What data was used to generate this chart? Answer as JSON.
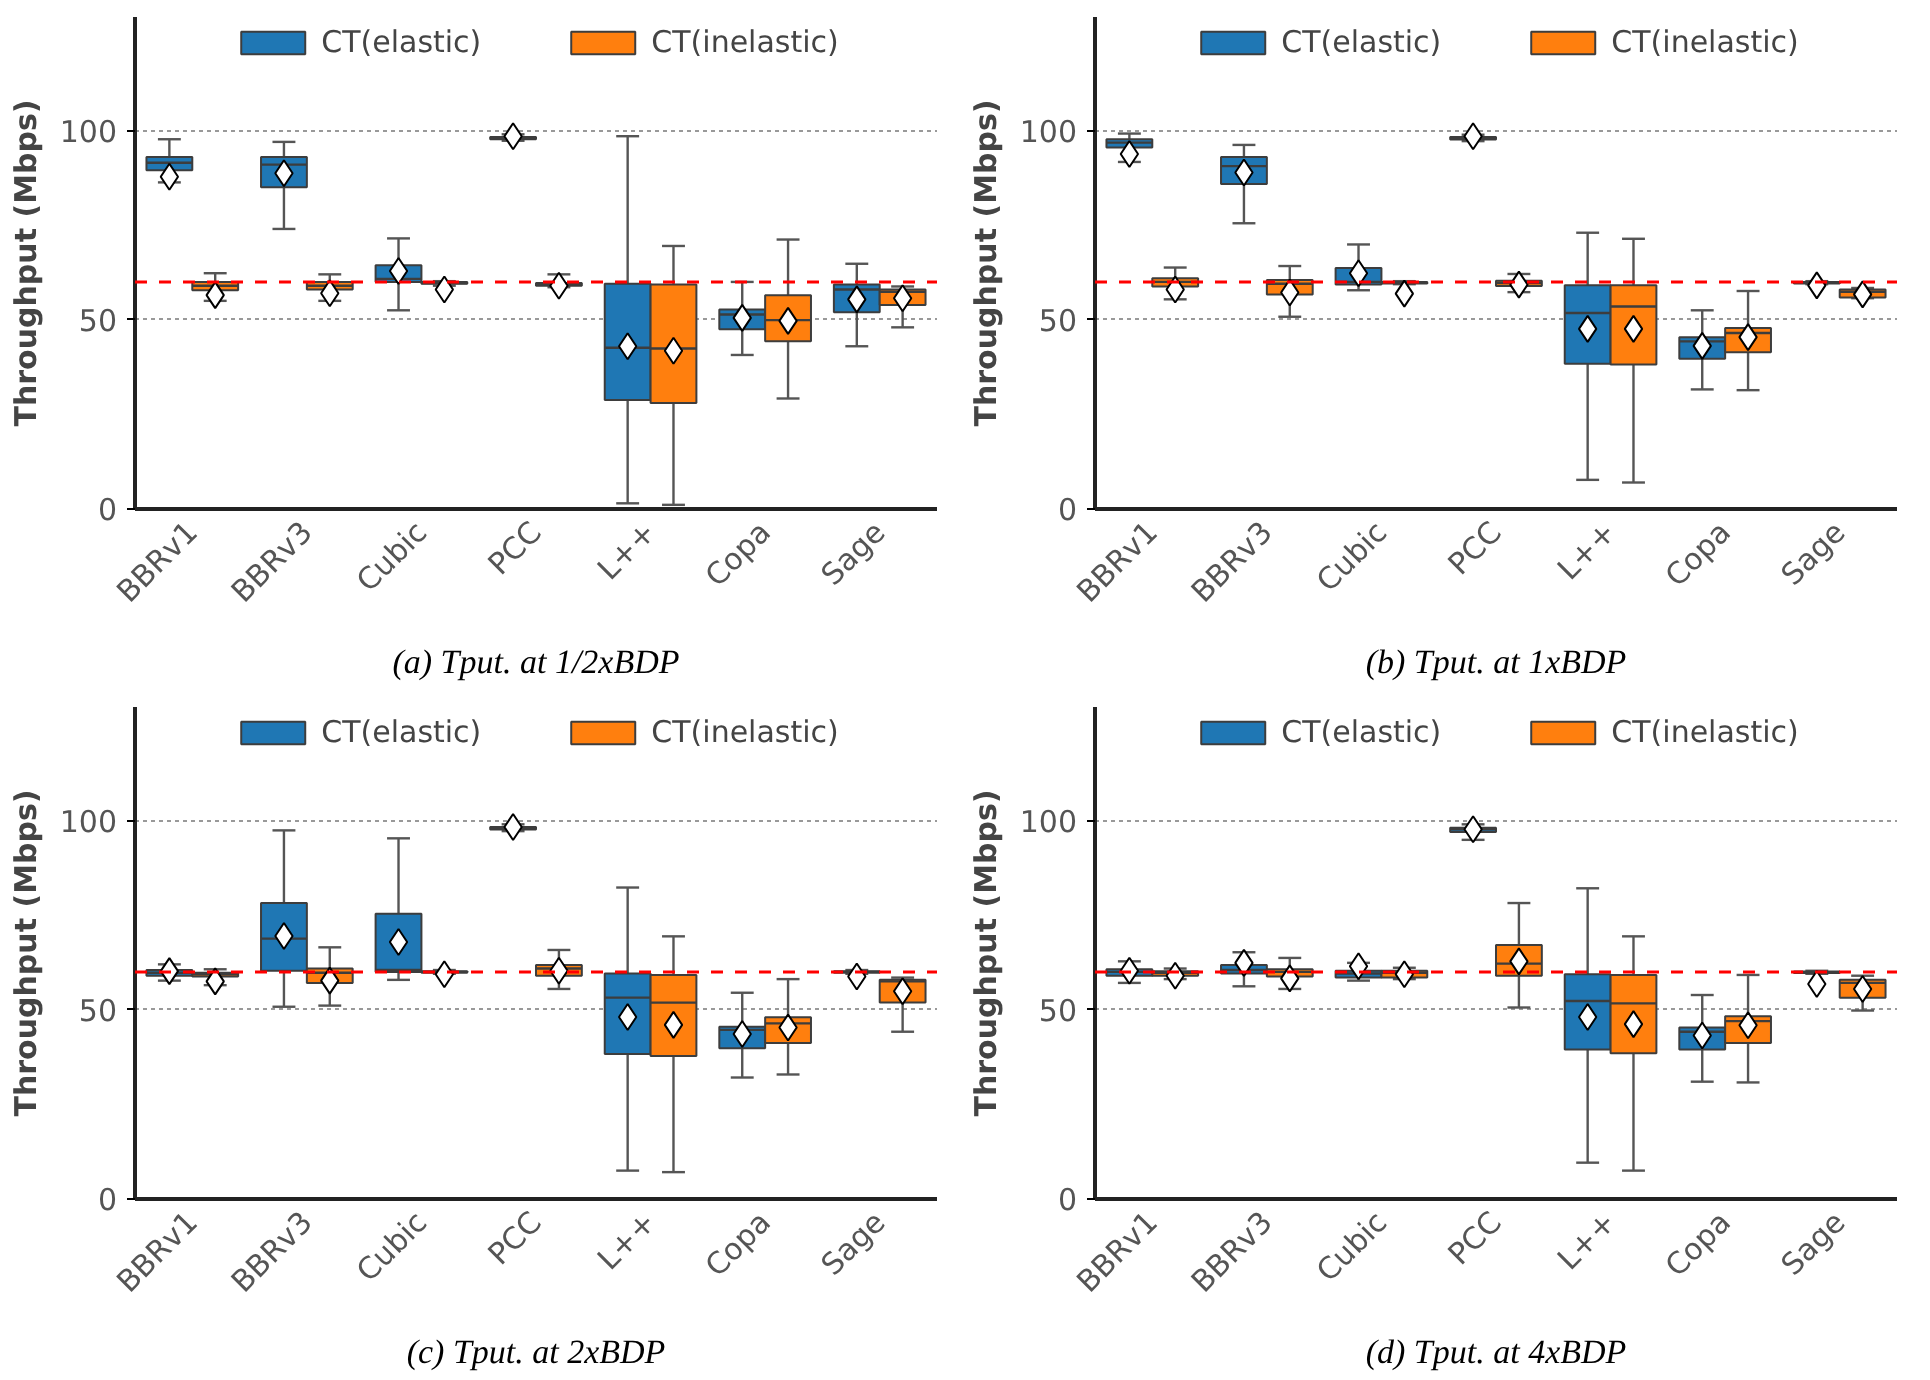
{
  "chart_data": [
    {
      "type": "box",
      "title": "(a) Tput. at 1/2xBDP",
      "ylabel": "Throughput (Mbps)",
      "categories": [
        "BBRv1",
        "BBRv3",
        "Cubic",
        "PCC",
        "L++",
        "Copa",
        "Sage"
      ],
      "ylim": [
        0,
        130
      ],
      "yticks": [
        0,
        50,
        100
      ],
      "grid": "y",
      "legend": "top",
      "marker": "diamond",
      "ref_lines": [
        {
          "axis": "y",
          "value": 60,
          "color": "#ff0000",
          "line_style": "dashed"
        }
      ],
      "series": [
        {
          "name": "CT(elastic)",
          "color": "#1f77b4",
          "boxes": [
            {
              "low": 86.3,
              "q1": 89.5,
              "median": 91.5,
              "q3": 93,
              "high": 97.7,
              "mean": 87.8
            },
            {
              "low": 74,
              "q1": 85,
              "median": 91,
              "q3": 93,
              "high": 97,
              "mean": 88.7
            },
            {
              "low": 52.5,
              "q1": 60,
              "median": 60.8,
              "q3": 64.4,
              "high": 71.5,
              "mean": 62.9
            },
            {
              "low": 97.3,
              "q1": 97.7,
              "median": 98,
              "q3": 98.3,
              "high": 99,
              "mean": 98.5
            },
            {
              "low": 1.5,
              "q1": 28.8,
              "median": 42.6,
              "q3": 59.5,
              "high": 98.5,
              "mean": 43
            },
            {
              "low": 40.7,
              "q1": 47.5,
              "median": 51.4,
              "q3": 52.7,
              "high": 60,
              "mean": 50.5
            },
            {
              "low": 43,
              "q1": 52,
              "median": 58,
              "q3": 59.3,
              "high": 64.8,
              "mean": 55.4
            }
          ]
        },
        {
          "name": "CT(inelastic)",
          "color": "#ff7f0e",
          "boxes": [
            {
              "low": 55,
              "q1": 57.8,
              "median": 59,
              "q3": 60,
              "high": 62.3,
              "mean": 56.5
            },
            {
              "low": 55,
              "q1": 58,
              "median": 59,
              "q3": 60,
              "high": 62,
              "mean": 57
            },
            {
              "low": 59,
              "q1": 59.5,
              "median": 59.7,
              "q3": 60,
              "high": 60.2,
              "mean": 58
            },
            {
              "low": 58.6,
              "q1": 59,
              "median": 59.3,
              "q3": 59.7,
              "high": 62,
              "mean": 59
            },
            {
              "low": 1.1,
              "q1": 28,
              "median": 42.4,
              "q3": 59.3,
              "high": 69.5,
              "mean": 41.8
            },
            {
              "low": 29.2,
              "q1": 44.3,
              "median": 49.9,
              "q3": 56.5,
              "high": 71.2,
              "mean": 49.7
            },
            {
              "low": 48,
              "q1": 53.9,
              "median": 57.4,
              "q3": 58,
              "high": 58.8,
              "mean": 55.7
            }
          ]
        }
      ]
    },
    {
      "type": "box",
      "title": "(b) Tput. at 1xBDP",
      "ylabel": "Throughput (Mbps)",
      "categories": [
        "BBRv1",
        "BBRv3",
        "Cubic",
        "PCC",
        "L++",
        "Copa",
        "Sage"
      ],
      "ylim": [
        0,
        130
      ],
      "yticks": [
        0,
        50,
        100
      ],
      "grid": "y",
      "legend": "top",
      "marker": "diamond",
      "ref_lines": [
        {
          "axis": "y",
          "value": 60,
          "color": "#ff0000",
          "line_style": "dashed"
        }
      ],
      "series": [
        {
          "name": "CT(elastic)",
          "color": "#1f77b4",
          "boxes": [
            {
              "low": 91.7,
              "q1": 95.5,
              "median": 96.8,
              "q3": 97.7,
              "high": 99.2,
              "mean": 93.8
            },
            {
              "low": 75.5,
              "q1": 85.9,
              "median": 90.6,
              "q3": 93,
              "high": 96.2,
              "mean": 88.9
            },
            {
              "low": 57.8,
              "q1": 59.3,
              "median": 60,
              "q3": 63.7,
              "high": 69.9,
              "mean": 62.3
            },
            {
              "low": 97.2,
              "q1": 97.6,
              "median": 97.9,
              "q3": 98.3,
              "high": 98.9,
              "mean": 98.5
            },
            {
              "low": 7.7,
              "q1": 38.4,
              "median": 51.8,
              "q3": 59.1,
              "high": 73,
              "mean": 47.6
            },
            {
              "low": 31.6,
              "q1": 39.7,
              "median": 44.3,
              "q3": 45.4,
              "high": 52.5,
              "mean": 43.1
            },
            {
              "low": 59.4,
              "q1": 59.6,
              "median": 59.8,
              "q3": 60,
              "high": 60.2,
              "mean": 59.1
            }
          ]
        },
        {
          "name": "CT(inelastic)",
          "color": "#ff7f0e",
          "boxes": [
            {
              "low": 55.4,
              "q1": 58.8,
              "median": 60,
              "q3": 61,
              "high": 63.8,
              "mean": 58
            },
            {
              "low": 50.8,
              "q1": 56.7,
              "median": 59.5,
              "q3": 60.5,
              "high": 64.2,
              "mean": 57.2
            },
            {
              "low": 59.4,
              "q1": 59.6,
              "median": 59.8,
              "q3": 60,
              "high": 60.2,
              "mean": 56.9
            },
            {
              "low": 57.3,
              "q1": 58.9,
              "median": 59.7,
              "q3": 60.3,
              "high": 62.1,
              "mean": 59.3
            },
            {
              "low": 7,
              "q1": 38.2,
              "median": 53.5,
              "q3": 59.1,
              "high": 71.4,
              "mean": 47.6
            },
            {
              "low": 31.4,
              "q1": 41.4,
              "median": 46.5,
              "q3": 47.8,
              "high": 57.6,
              "mean": 45.4
            },
            {
              "low": 55.7,
              "q1": 55.9,
              "median": 57.4,
              "q3": 58,
              "high": 58.4,
              "mean": 56.7
            }
          ]
        }
      ]
    },
    {
      "type": "box",
      "title": "(c) Tput. at 2xBDP",
      "ylabel": "Throughput (Mbps)",
      "categories": [
        "BBRv1",
        "BBRv3",
        "Cubic",
        "PCC",
        "L++",
        "Copa",
        "Sage"
      ],
      "ylim": [
        0,
        130
      ],
      "yticks": [
        0,
        50,
        100
      ],
      "grid": "y",
      "legend": "top",
      "marker": "diamond",
      "ref_lines": [
        {
          "axis": "y",
          "value": 60,
          "color": "#ff0000",
          "line_style": "dashed"
        }
      ],
      "series": [
        {
          "name": "CT(elastic)",
          "color": "#1f77b4",
          "boxes": [
            {
              "low": 57.7,
              "q1": 59,
              "median": 59.8,
              "q3": 60.5,
              "high": 62,
              "mean": 60.2
            },
            {
              "low": 50.8,
              "q1": 60.3,
              "median": 68.8,
              "q3": 78.2,
              "high": 97.4,
              "mean": 69.5
            },
            {
              "low": 57.9,
              "q1": 60,
              "median": 60.5,
              "q3": 75.4,
              "high": 95.3,
              "mean": 67.9
            },
            {
              "low": 97.2,
              "q1": 97.6,
              "median": 98,
              "q3": 98.3,
              "high": 99,
              "mean": 98.3
            },
            {
              "low": 7.5,
              "q1": 38.3,
              "median": 53.2,
              "q3": 59.6,
              "high": 82.3,
              "mean": 48.1
            },
            {
              "low": 32.1,
              "q1": 39.8,
              "median": 44.7,
              "q3": 45.5,
              "high": 54.5,
              "mean": 43.6
            },
            {
              "low": 59.5,
              "q1": 59.8,
              "median": 60,
              "q3": 60.2,
              "high": 60.5,
              "mean": 58.8
            }
          ]
        },
        {
          "name": "CT(inelastic)",
          "color": "#ff7f0e",
          "boxes": [
            {
              "low": 56.5,
              "q1": 58.8,
              "median": 59.4,
              "q3": 59.8,
              "high": 60.7,
              "mean": 57.5
            },
            {
              "low": 51.1,
              "q1": 57.1,
              "median": 59.8,
              "q3": 60.9,
              "high": 66.5,
              "mean": 57.7
            },
            {
              "low": 59.5,
              "q1": 59.8,
              "median": 60,
              "q3": 60.2,
              "high": 60.5,
              "mean": 59.4
            },
            {
              "low": 55.5,
              "q1": 59,
              "median": 60.9,
              "q3": 61.8,
              "high": 65.8,
              "mean": 60.3
            },
            {
              "low": 7.1,
              "q1": 37.8,
              "median": 51.9,
              "q3": 59.2,
              "high": 69.4,
              "mean": 46
            },
            {
              "low": 32.9,
              "q1": 41.2,
              "median": 46.4,
              "q3": 48,
              "high": 58.1,
              "mean": 45.3
            },
            {
              "low": 44.2,
              "q1": 51.9,
              "median": 57.5,
              "q3": 57.9,
              "high": 58.5,
              "mean": 54.9
            }
          ]
        }
      ]
    },
    {
      "type": "box",
      "title": "(d) Tput. at 4xBDP",
      "ylabel": "Throughput (Mbps)",
      "categories": [
        "BBRv1",
        "BBRv3",
        "Cubic",
        "PCC",
        "L++",
        "Copa",
        "Sage"
      ],
      "ylim": [
        0,
        130
      ],
      "yticks": [
        0,
        50,
        100
      ],
      "grid": "y",
      "legend": "top",
      "marker": "diamond",
      "ref_lines": [
        {
          "axis": "y",
          "value": 60,
          "color": "#ff0000",
          "line_style": "dashed"
        }
      ],
      "series": [
        {
          "name": "CT(elastic)",
          "color": "#1f77b4",
          "boxes": [
            {
              "low": 57.1,
              "q1": 59,
              "median": 60,
              "q3": 60.7,
              "high": 62.8,
              "mean": 60.3
            },
            {
              "low": 56.2,
              "q1": 59.6,
              "median": 60.5,
              "q3": 61.8,
              "high": 65.2,
              "mean": 62.4
            },
            {
              "low": 57.7,
              "q1": 58.5,
              "median": 59.6,
              "q3": 60.3,
              "high": 62.4,
              "mean": 61.5
            },
            {
              "low": 94.9,
              "q1": 97,
              "median": 97.7,
              "q3": 98.1,
              "high": 99,
              "mean": 97.7
            },
            {
              "low": 9.6,
              "q1": 39.5,
              "median": 52.3,
              "q3": 59.4,
              "high": 82.1,
              "mean": 48.1
            },
            {
              "low": 31,
              "q1": 39.5,
              "median": 44.2,
              "q3": 45.3,
              "high": 53.9,
              "mean": 43.2
            },
            {
              "low": 59.5,
              "q1": 59.7,
              "median": 59.9,
              "q3": 60.1,
              "high": 60.3,
              "mean": 56.8
            }
          ]
        },
        {
          "name": "CT(inelastic)",
          "color": "#ff7f0e",
          "boxes": [
            {
              "low": 58.1,
              "q1": 59,
              "median": 59.8,
              "q3": 60.2,
              "high": 60.9,
              "mean": 59
            },
            {
              "low": 55.5,
              "q1": 58.8,
              "median": 60,
              "q3": 60.7,
              "high": 63.7,
              "mean": 58.3
            },
            {
              "low": 58.1,
              "q1": 58.5,
              "median": 59.8,
              "q3": 60.3,
              "high": 61.1,
              "mean": 59.4
            },
            {
              "low": 50.6,
              "q1": 59,
              "median": 62.2,
              "q3": 67.1,
              "high": 78.2,
              "mean": 62.8
            },
            {
              "low": 7.5,
              "q1": 38.5,
              "median": 51.7,
              "q3": 59.2,
              "high": 69.4,
              "mean": 46.2
            },
            {
              "low": 30.8,
              "q1": 41.2,
              "median": 47,
              "q3": 48.3,
              "high": 59.2,
              "mean": 45.9
            },
            {
              "low": 49.8,
              "q1": 53.2,
              "median": 57.1,
              "q3": 57.9,
              "high": 59,
              "mean": 55.5
            }
          ]
        }
      ]
    }
  ]
}
